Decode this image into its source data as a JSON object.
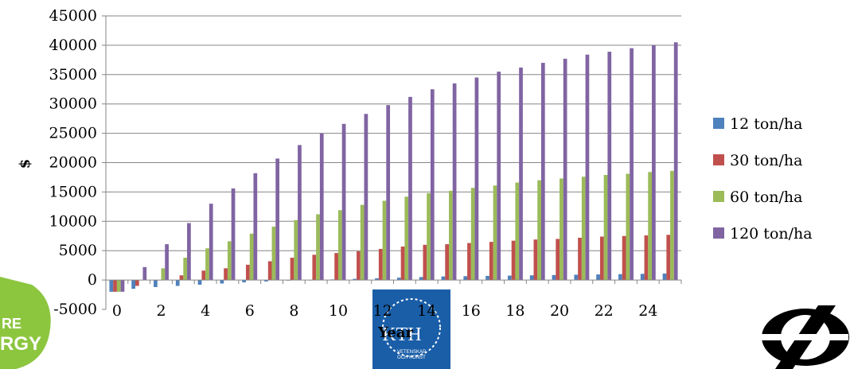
{
  "chart_data": {
    "type": "bar",
    "xlabel": "Year",
    "ylabel": "$",
    "ylim": [
      -5000,
      45000
    ],
    "yticks": [
      -5000,
      0,
      5000,
      10000,
      15000,
      20000,
      25000,
      30000,
      35000,
      40000,
      45000
    ],
    "ytick_labels": [
      "-5000",
      "0",
      "5000",
      "10000",
      "15000",
      "20000",
      "25000",
      "30000",
      "35000",
      "40000",
      "45000"
    ],
    "x_tick_labels": [
      "0",
      "2",
      "4",
      "6",
      "8",
      "10",
      "12",
      "14",
      "16",
      "18",
      "20",
      "22",
      "24"
    ],
    "categories": [
      "0",
      "1",
      "2",
      "3",
      "4",
      "5",
      "6",
      "7",
      "8",
      "9",
      "10",
      "11",
      "12",
      "13",
      "14",
      "15",
      "16",
      "17",
      "18",
      "19",
      "20",
      "21",
      "22",
      "23",
      "24",
      "25"
    ],
    "grid": "horizontal",
    "legend_position": "right",
    "series": [
      {
        "name": "12 ton/ha",
        "color": "#4f81bd",
        "values": [
          -2000,
          -1500,
          -1200,
          -1000,
          -800,
          -600,
          -400,
          -250,
          -100,
          0,
          100,
          200,
          300,
          400,
          500,
          600,
          650,
          700,
          750,
          800,
          850,
          900,
          950,
          1000,
          1050,
          1100
        ]
      },
      {
        "name": "30  ton/ha",
        "color": "#c0504d",
        "values": [
          -2000,
          -1000,
          0,
          800,
          1600,
          2000,
          2600,
          3200,
          3800,
          4300,
          4600,
          4900,
          5300,
          5700,
          6000,
          6100,
          6300,
          6500,
          6700,
          6900,
          7000,
          7200,
          7400,
          7500,
          7600,
          7700
        ]
      },
      {
        "name": "60  ton/ha",
        "color": "#9bbb59",
        "values": [
          -2000,
          0,
          2000,
          3800,
          5400,
          6600,
          7900,
          9100,
          10200,
          11200,
          11900,
          12800,
          13500,
          14200,
          14800,
          15200,
          15700,
          16100,
          16600,
          17000,
          17300,
          17600,
          17900,
          18100,
          18400,
          18600
        ]
      },
      {
        "name": "120  ton/ha",
        "color": "#8064a2",
        "values": [
          -2000,
          2200,
          6100,
          9700,
          13000,
          15600,
          18200,
          20700,
          23000,
          25000,
          26600,
          28300,
          29800,
          31200,
          32500,
          33500,
          34500,
          35500,
          36200,
          37000,
          37700,
          38400,
          38900,
          39500,
          40000,
          40500
        ]
      }
    ]
  },
  "logos": {
    "left_logo_text": "RE RGY",
    "center_logo_text": "KTH VETENSKAP OCH KONST",
    "center_logo_color": "#1a5ea8",
    "left_logo_color": "#8cc63f"
  }
}
